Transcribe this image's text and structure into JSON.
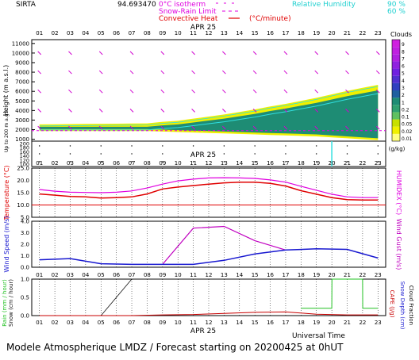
{
  "header": {
    "station": "SIRTA",
    "code": "94.693470",
    "legend_isotherm": "0°C isotherm",
    "legend_snowrain": "Snow-Rain Limit",
    "legend_convective": "Convective Heat",
    "legend_unit": "(°C/minute)",
    "legend_rh": "Relative Humidity",
    "rh_90": "90 %",
    "rh_60": "60 %"
  },
  "hours": [
    "01",
    "02",
    "03",
    "04",
    "05",
    "06",
    "07",
    "08",
    "09",
    "10",
    "11",
    "12",
    "13",
    "14",
    "15",
    "16",
    "17",
    "18",
    "19",
    "20",
    "21",
    "22",
    "23"
  ],
  "date_label": "APR 25",
  "footer": {
    "title": "Modele Atmospherique LMDZ / Forecast starting on 20200425 at 0hUT",
    "universal_time": "Universal Time"
  },
  "colors": {
    "cloud_green": "#1e8c74",
    "cloud_yellow": "#f0f000",
    "temperature": "#e00000",
    "humidex": "#e000e0",
    "wind_speed": "#1818d0",
    "wind_gust": "#c000c0",
    "rain": "#20c020",
    "snow": "#101010",
    "cape": "#c80000"
  },
  "chart_data": [
    {
      "type": "area",
      "panel": "cloud-profile",
      "ylabel": "Height (m a.s.l.)",
      "ylabel2": "Up to 200 m a.g.l.",
      "y_ticks_upper": [
        "11000",
        "10000",
        "9000",
        "8000",
        "7000",
        "6000",
        "5000",
        "4000",
        "3000",
        "2000",
        "1000"
      ],
      "y_ticks_lower": [
        "200",
        "180",
        "160",
        "140",
        "120",
        "100"
      ],
      "clouds_label": "Clouds",
      "clouds_unit": "(g/kg)",
      "colorbar": [
        "0.01",
        "0.02",
        "0.05",
        "0.1",
        "0.2",
        "1",
        "2",
        "3",
        "4",
        "5",
        "6",
        "7",
        "8",
        "9"
      ],
      "cloud_top_m": [
        2300,
        2300,
        2300,
        2300,
        2300,
        2300,
        2300,
        2300,
        2450,
        2550,
        2750,
        2950,
        3150,
        3400,
        3650,
        3950,
        4200,
        4500,
        4800,
        5150,
        5500,
        5800,
        6100
      ],
      "cloud_base_m": [
        2050,
        2050,
        2050,
        2050,
        2050,
        2050,
        2050,
        2050,
        2000,
        1950,
        1900,
        1850,
        1800,
        1750,
        1700,
        1650,
        1600,
        1550,
        1500,
        1400,
        1300,
        1200,
        1100
      ]
    },
    {
      "type": "line",
      "panel": "temperature",
      "ylabel": "Temperature (°C)",
      "ylabel2": "HUMIDEX (°C)",
      "y_ticks": [
        "25.0",
        "20.0",
        "15.0",
        "10.0",
        "5.0"
      ],
      "ylim": [
        5,
        25
      ],
      "series": [
        {
          "name": "Temperature",
          "values": [
            14.5,
            14.0,
            13.5,
            13.3,
            12.8,
            13.0,
            13.3,
            14.5,
            16.5,
            17.3,
            17.9,
            18.5,
            19.0,
            19.3,
            19.3,
            18.8,
            17.7,
            15.8,
            14.4,
            13.0,
            12.2,
            12.0,
            12.0
          ]
        },
        {
          "name": "HUMIDEX",
          "values": [
            16.3,
            15.6,
            15.2,
            15.1,
            15.0,
            15.2,
            15.7,
            16.9,
            18.5,
            19.8,
            20.5,
            21.0,
            21.1,
            21.0,
            20.8,
            20.2,
            19.3,
            17.6,
            16.0,
            14.4,
            13.3,
            13.0,
            13.0
          ]
        }
      ],
      "threshold": 10.0
    },
    {
      "type": "line",
      "panel": "wind",
      "ylabel": "Wind Speed (m/s)",
      "ylabel2": "Wind Gust (m/s)",
      "y_ticks": [
        "4.0",
        "3.0",
        "2.0",
        "1.0",
        "0.0"
      ],
      "ylim": [
        0,
        4
      ],
      "series": [
        {
          "name": "Wind Speed",
          "x": [
            1,
            3,
            5,
            7,
            9,
            11,
            13,
            15,
            17,
            19,
            21,
            23
          ],
          "values": [
            0.65,
            0.75,
            0.3,
            0.25,
            0.25,
            0.25,
            0.6,
            1.15,
            1.5,
            1.6,
            1.55,
            0.8
          ]
        },
        {
          "name": "Wind Gust",
          "x": [
            9,
            11,
            13,
            15,
            17
          ],
          "values": [
            0.25,
            3.4,
            3.55,
            2.3,
            1.5
          ]
        }
      ]
    },
    {
      "type": "line",
      "panel": "precipitation",
      "ylabel": "Rain (mm / hour)",
      "ylabel_snow": "Snow (cm / hour)",
      "ylabel2": "CAPE (J/g)",
      "ylabel2_snow": "Snow Depth (cm)",
      "ylabel2_cloud": "Cloud Fraction",
      "y_ticks": [
        "1.0",
        "0.5",
        "0.0"
      ],
      "ylim": [
        0,
        1
      ],
      "series": [
        {
          "name": "CAPE",
          "x": [
            1,
            3,
            5,
            7,
            9,
            11,
            13,
            15,
            17,
            19,
            21,
            23
          ],
          "values": [
            0.0,
            0.0,
            0.0,
            0.0,
            0.02,
            0.03,
            0.06,
            0.09,
            0.1,
            0.04,
            0.02,
            0.02
          ]
        },
        {
          "name": "Cloud Fraction",
          "x": [
            1,
            3,
            5,
            7,
            9,
            11,
            13,
            15,
            17,
            19,
            21,
            23
          ],
          "values": [
            0.0,
            0.0,
            0.0,
            1.0,
            1.0,
            1.0,
            1.0,
            1.0,
            1.0,
            1.0,
            1.0,
            1.0
          ]
        },
        {
          "name": "Rain",
          "x": [
            18,
            19,
            20,
            20.01,
            21,
            22,
            22.01,
            23
          ],
          "values": [
            0.2,
            0.2,
            0.2,
            1.0,
            1.0,
            1.0,
            0.2,
            0.2
          ]
        }
      ]
    }
  ]
}
